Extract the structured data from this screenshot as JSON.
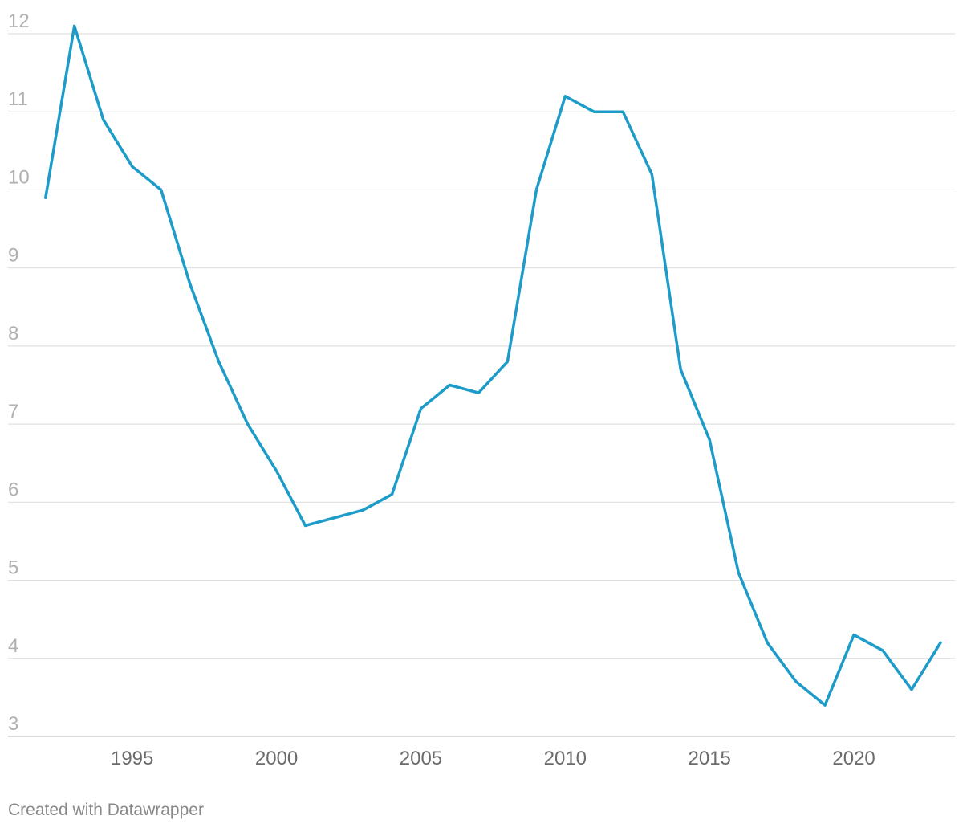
{
  "chart_data": {
    "type": "line",
    "title": "",
    "xlabel": "",
    "ylabel": "",
    "xlim": [
      1990.7,
      2023.5
    ],
    "ylim": [
      3,
      12
    ],
    "y_ticks": [
      3,
      4,
      5,
      6,
      7,
      8,
      9,
      10,
      11,
      12
    ],
    "x_ticks": [
      1995,
      2000,
      2005,
      2010,
      2015,
      2020
    ],
    "grid": true,
    "legend": "none",
    "line_color": "#1d9bc9",
    "x": [
      1992,
      1993,
      1994,
      1995,
      1996,
      1997,
      1998,
      1999,
      2000,
      2001,
      2002,
      2003,
      2004,
      2005,
      2006,
      2007,
      2008,
      2009,
      2010,
      2011,
      2012,
      2013,
      2014,
      2015,
      2016,
      2017,
      2018,
      2019,
      2020,
      2021,
      2022,
      2023
    ],
    "values": [
      9.9,
      12.1,
      10.9,
      10.3,
      10.0,
      8.8,
      7.8,
      7.0,
      6.4,
      5.7,
      5.8,
      5.9,
      6.1,
      7.2,
      7.5,
      7.4,
      7.8,
      10.0,
      11.2,
      11.0,
      11.0,
      10.2,
      7.7,
      6.8,
      5.1,
      4.2,
      3.7,
      3.4,
      4.3,
      4.1,
      3.6,
      4.2
    ]
  },
  "credit": "Created with Datawrapper"
}
